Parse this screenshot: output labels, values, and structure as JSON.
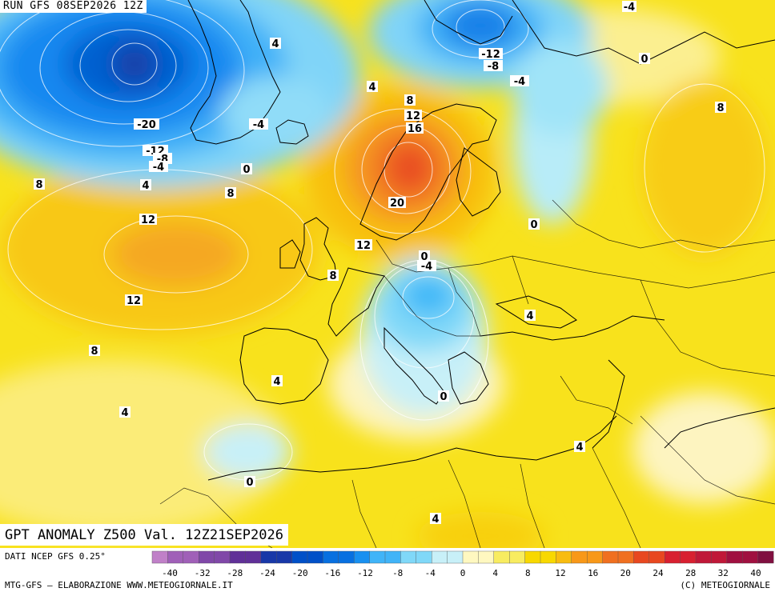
{
  "header": {
    "run_title": "RUN GFS 08SEP2026 12Z"
  },
  "map": {
    "title": "GPT ANOMALY Z500 Val. 12Z21SEP2026",
    "contour_labels": [
      {
        "text": "-4"
      },
      {
        "text": "4"
      },
      {
        "text": "0"
      },
      {
        "text": "-12"
      },
      {
        "text": "-8"
      },
      {
        "text": "-4"
      },
      {
        "text": "4"
      },
      {
        "text": "8"
      },
      {
        "text": "12"
      },
      {
        "text": "16"
      },
      {
        "text": "-20"
      },
      {
        "text": "-4"
      },
      {
        "text": "-12"
      },
      {
        "text": "-8"
      },
      {
        "text": "-4"
      },
      {
        "text": "0"
      },
      {
        "text": "8"
      },
      {
        "text": "4"
      },
      {
        "text": "8"
      },
      {
        "text": "20"
      },
      {
        "text": "12"
      },
      {
        "text": "8"
      },
      {
        "text": "0"
      },
      {
        "text": "12"
      },
      {
        "text": "0"
      },
      {
        "text": "-4"
      },
      {
        "text": "8"
      },
      {
        "text": "12"
      },
      {
        "text": "4"
      },
      {
        "text": "8"
      },
      {
        "text": "4"
      },
      {
        "text": "4"
      },
      {
        "text": "0"
      },
      {
        "text": "4"
      },
      {
        "text": "0"
      },
      {
        "text": "4"
      }
    ]
  },
  "colors": {
    "neg_40": "#c080c8",
    "neg_36": "#a060b8",
    "neg_32": "#8048a8",
    "neg_28": "#603098",
    "neg_24": "#1838a8",
    "neg_20": "#0050c8",
    "neg_16": "#0870e0",
    "neg_12": "#1890f0",
    "neg_8": "#40b4f8",
    "neg_4": "#80d8f8",
    "zero": "#c8f0f8",
    "pos_0": "#fff8c0",
    "pos_4": "#f8ec60",
    "pos_8": "#f8d800",
    "pos_12": "#f8bc10",
    "pos_16": "#f89818",
    "pos_20": "#f07020",
    "pos_24": "#e84820",
    "pos_28": "#d82030",
    "pos_32": "#c01838",
    "pos_36": "#a01040",
    "pos_40": "#801040"
  },
  "scale": {
    "tick_labels": [
      "-40",
      "-32",
      "-28",
      "-24",
      "-20",
      "-16",
      "-12",
      "-8",
      "-4",
      "0",
      "4",
      "8",
      "12",
      "16",
      "20",
      "24",
      "28",
      "32",
      "40"
    ]
  },
  "footer": {
    "source": "DATI NCEP GFS 0.25°",
    "credit_left": "MTG-GFS – ELABORAZIONE WWW.METEOGIORNALE.IT",
    "credit_right": "(C) METEOGIORNALE"
  }
}
